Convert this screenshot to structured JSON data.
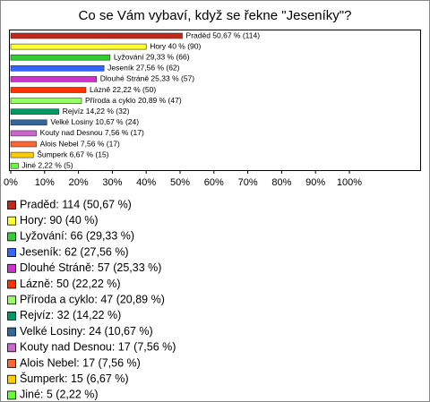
{
  "chart_data": {
    "type": "hbar",
    "title": "Co se Vám vybaví, když se řekne \"Jeseníky\"?",
    "categories": [
      "Praděd",
      "Hory",
      "Lyžování",
      "Jeseník",
      "Dlouhé Stráně",
      "Lázně",
      "Příroda a cyklo",
      "Rejvíz",
      "Velké Losiny",
      "Kouty nad Desnou",
      "Alois Nebel",
      "Šumperk",
      "Jiné"
    ],
    "values": [
      50.67,
      40,
      29.33,
      27.56,
      25.33,
      22.22,
      20.89,
      14.22,
      10.67,
      7.56,
      7.56,
      6.67,
      2.22
    ],
    "value_labels": [
      "Praděd 50,67 % (114)",
      "Hory 40 % (90)",
      "Lyžování 29,33 % (66)",
      "Jeseník 27,56 % (62)",
      "Dlouhé Stráně 25,33 % (57)",
      "Lázně 22,22 % (50)",
      "Příroda a cyklo 20,89 % (47)",
      "Rejvíz 14,22 % (32)",
      "Velké Losiny 10,67 % (24)",
      "Kouty nad Desnou 7,56 % (17)",
      "Alois Nebel 7,56 % (17)",
      "Šumperk 6,67 % (15)",
      "Jiné 2,22 % (5)"
    ],
    "legend_labels": [
      "Praděd: 114 (50,67 %)",
      "Hory: 90 (40 %)",
      "Lyžování: 66 (29,33 %)",
      "Jeseník: 62 (27,56 %)",
      "Dlouhé Stráně: 57 (25,33 %)",
      "Lázně: 50 (22,22 %)",
      "Příroda a cyklo: 47 (20,89 %)",
      "Rejvíz: 32 (14,22 %)",
      "Velké Losiny: 24 (10,67 %)",
      "Kouty nad Desnou: 17 (7,56 %)",
      "Alois Nebel: 17 (7,56 %)",
      "Šumperk: 15 (6,67 %)",
      "Jiné: 5 (2,22 %)"
    ],
    "colors": [
      "#c0281c",
      "#ffff33",
      "#33cc33",
      "#3366ff",
      "#cc33cc",
      "#ff3300",
      "#99ff66",
      "#009966",
      "#336699",
      "#cc66cc",
      "#ff6633",
      "#ffcc00",
      "#66ff33"
    ],
    "xlim": [
      0,
      100
    ],
    "xticks": [
      {
        "value": 0,
        "label": "0%"
      },
      {
        "value": 10,
        "label": "10%"
      },
      {
        "value": 20,
        "label": "20%"
      },
      {
        "value": 30,
        "label": "30%"
      },
      {
        "value": 40,
        "label": "40%"
      },
      {
        "value": 50,
        "label": "50%"
      },
      {
        "value": 60,
        "label": "60%"
      },
      {
        "value": 70,
        "label": "70%"
      },
      {
        "value": 80,
        "label": "80%"
      },
      {
        "value": 90,
        "label": "90%"
      },
      {
        "value": 100,
        "label": "100%"
      }
    ],
    "grid": false
  }
}
